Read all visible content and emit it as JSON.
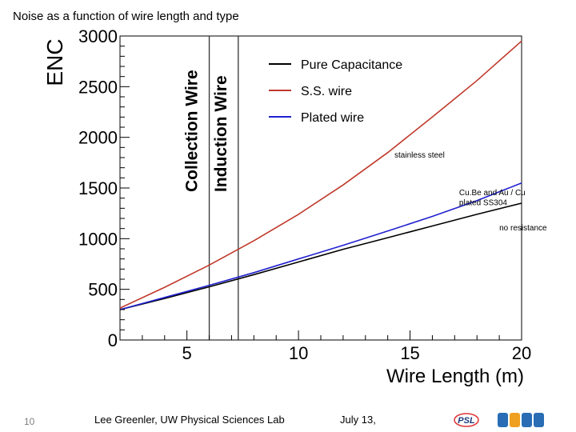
{
  "slide": {
    "title": "Noise as a function of wire length and type",
    "page_number": "10",
    "author": "Lee Greenler, UW Physical Sciences Lab",
    "date": "July 13,"
  },
  "chart_data": {
    "type": "line",
    "ylabel": "ENC",
    "xlabel": "Wire Length (m)",
    "xlim": [
      2,
      20
    ],
    "ylim": [
      0,
      3000
    ],
    "xticks": [
      5,
      10,
      15,
      20
    ],
    "yticks": [
      0,
      500,
      1000,
      1500,
      2000,
      2500,
      3000
    ],
    "grid": false,
    "legend_position": "top-right",
    "series": [
      {
        "name": "Pure Capacitance",
        "color": "#000000",
        "x": [
          2,
          4,
          6,
          8,
          10,
          12,
          14,
          16,
          18,
          20
        ],
        "y": [
          300,
          410,
          525,
          645,
          770,
          895,
          1010,
          1125,
          1240,
          1350
        ]
      },
      {
        "name": "S.S. wire",
        "color": "#c0392b",
        "x": [
          2,
          4,
          6,
          8,
          10,
          12,
          14,
          16,
          18,
          20
        ],
        "y": [
          315,
          520,
          740,
          980,
          1240,
          1530,
          1850,
          2200,
          2560,
          2950
        ]
      },
      {
        "name": "Plated wire",
        "color": "#2020d0",
        "x": [
          2,
          4,
          6,
          8,
          10,
          12,
          14,
          16,
          18,
          20
        ],
        "y": [
          300,
          420,
          540,
          665,
          800,
          935,
          1075,
          1220,
          1375,
          1550
        ]
      }
    ],
    "vertical_markers": [
      {
        "x": 6.0,
        "label": "Collection Wire"
      },
      {
        "x": 7.3,
        "label": "Induction Wire"
      }
    ],
    "annotations": [
      {
        "text": "stainless steel",
        "x": 14.3,
        "y": 1800
      },
      {
        "text": "Cu.Be and Au / Cu",
        "x": 17.2,
        "y": 1430
      },
      {
        "text": "plated SS304",
        "x": 17.2,
        "y": 1330
      },
      {
        "text": "no resistance",
        "x": 19.0,
        "y": 1080
      }
    ]
  }
}
